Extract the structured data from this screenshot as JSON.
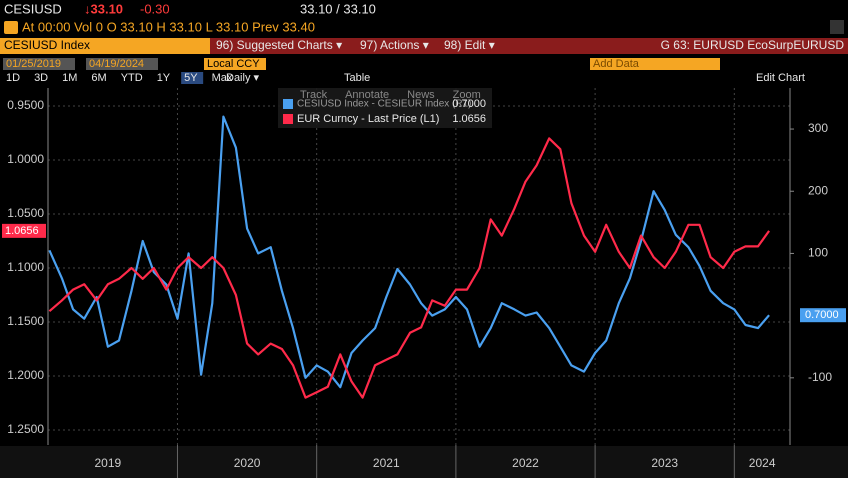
{
  "header": {
    "ticker": "CESIUSD",
    "last": "↓33.10",
    "change": "-0.30",
    "bid_ask": "33.10 / 33.10",
    "stats": "At 00:00 Vol 0 O 33.10 H 33.10 L 33.10 Prev 33.40"
  },
  "menu": {
    "security": "CESIUSD Index",
    "items": [
      "96) Suggested Charts ▾",
      "97) Actions ▾",
      "98) Edit ▾"
    ],
    "chart_id": "G 63: EURUSD EcoSurpEURUSD"
  },
  "controls": {
    "start": "01/25/2019",
    "end": "04/19/2024",
    "currency": "Local CCY",
    "add_data": "Add Data",
    "edit": "Edit Chart",
    "periods": [
      "1D",
      "3D",
      "1M",
      "6M",
      "YTD",
      "1Y",
      "5Y",
      "Max"
    ],
    "frequency": "Daily ▾",
    "table": "Table"
  },
  "toolbar": [
    "Track",
    "Annotate",
    "News",
    "Zoom"
  ],
  "chart_data": {
    "type": "line",
    "x": [
      2019.08,
      2019.17,
      2019.25,
      2019.33,
      2019.42,
      2019.5,
      2019.58,
      2019.67,
      2019.75,
      2019.83,
      2019.92,
      2020.0,
      2020.08,
      2020.17,
      2020.25,
      2020.33,
      2020.42,
      2020.5,
      2020.58,
      2020.67,
      2020.75,
      2020.83,
      2020.92,
      2021.0,
      2021.08,
      2021.17,
      2021.25,
      2021.33,
      2021.42,
      2021.5,
      2021.58,
      2021.67,
      2021.75,
      2021.83,
      2021.92,
      2022.0,
      2022.08,
      2022.17,
      2022.25,
      2022.33,
      2022.42,
      2022.5,
      2022.58,
      2022.67,
      2022.75,
      2022.83,
      2022.92,
      2023.0,
      2023.08,
      2023.17,
      2023.25,
      2023.33,
      2023.42,
      2023.5,
      2023.58,
      2023.67,
      2023.75,
      2023.83,
      2023.92,
      2024.0,
      2024.08,
      2024.17,
      2024.25
    ],
    "xlim": [
      2019.07,
      2024.4
    ],
    "xticks": [
      2020,
      2021,
      2022,
      2023,
      2024
    ],
    "x_labels": [
      {
        "value": 2019.5,
        "label": "2019"
      },
      {
        "value": 2020.5,
        "label": "2020"
      },
      {
        "value": 2021.5,
        "label": "2021"
      },
      {
        "value": 2022.5,
        "label": "2022"
      },
      {
        "value": 2023.5,
        "label": "2023"
      },
      {
        "value": 2024.2,
        "label": "2024"
      }
    ],
    "ylim": [
      1.2639,
      0.9333
    ],
    "yticks": [
      {
        "value": 0.95,
        "label": "0.9500"
      },
      {
        "value": 1.0,
        "label": "1.0000"
      },
      {
        "value": 1.05,
        "label": "1.0500"
      },
      {
        "value": 1.1,
        "label": "1.1000"
      },
      {
        "value": 1.15,
        "label": "1.1500"
      },
      {
        "value": 1.2,
        "label": "1.2000"
      },
      {
        "value": 1.25,
        "label": "1.2500"
      }
    ],
    "y2lim": [
      -208,
      366
    ],
    "y2ticks": [
      300,
      200,
      100,
      -100
    ],
    "grid": true,
    "series": [
      {
        "name": "EUR Curncy - Last Price (L1)",
        "color": "#ff2a4a",
        "axis": "y",
        "values": [
          1.14,
          1.13,
          1.12,
          1.115,
          1.13,
          1.115,
          1.11,
          1.1,
          1.11,
          1.1,
          1.12,
          1.1,
          1.09,
          1.1,
          1.09,
          1.1,
          1.125,
          1.17,
          1.18,
          1.17,
          1.175,
          1.19,
          1.22,
          1.215,
          1.21,
          1.18,
          1.205,
          1.22,
          1.19,
          1.185,
          1.18,
          1.16,
          1.155,
          1.13,
          1.135,
          1.12,
          1.12,
          1.1,
          1.055,
          1.07,
          1.045,
          1.02,
          1.005,
          0.98,
          0.99,
          1.04,
          1.07,
          1.085,
          1.06,
          1.085,
          1.1,
          1.07,
          1.09,
          1.1,
          1.085,
          1.06,
          1.06,
          1.09,
          1.1,
          1.085,
          1.08,
          1.08,
          1.0656
        ],
        "flag": {
          "value": 1.0656,
          "label": "1.0656"
        }
      },
      {
        "name": "CESIUSD Index - CESIEUR Index (R1)",
        "color": "#4aa0f0",
        "axis": "y2",
        "values": [
          105,
          60,
          10,
          -5,
          30,
          -50,
          -40,
          40,
          120,
          70,
          50,
          -5,
          100,
          -95,
          20,
          320,
          270,
          140,
          100,
          110,
          40,
          -20,
          -100,
          -80,
          -90,
          -115,
          -60,
          -40,
          -20,
          30,
          75,
          50,
          20,
          0,
          10,
          30,
          10,
          -50,
          -20,
          20,
          10,
          0,
          5,
          -20,
          -50,
          -80,
          -90,
          -60,
          -40,
          20,
          60,
          120,
          200,
          170,
          130,
          110,
          80,
          40,
          20,
          10,
          -15,
          -20,
          0.7
        ],
        "flag": {
          "value": 0.7,
          "label": "0.7000"
        }
      }
    ]
  }
}
